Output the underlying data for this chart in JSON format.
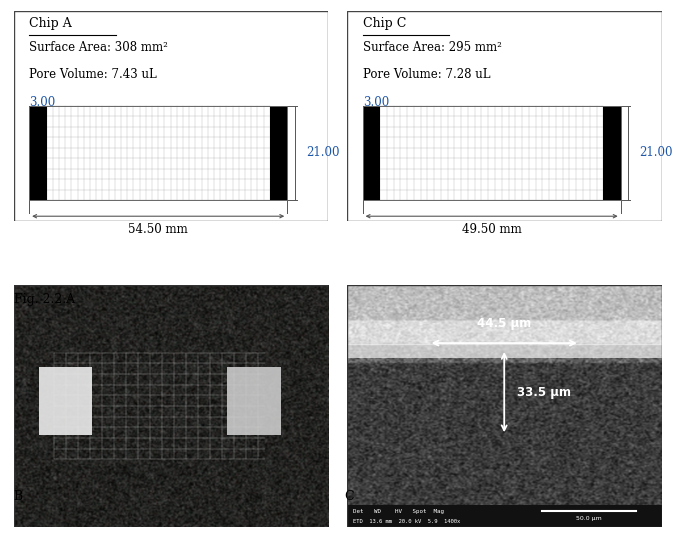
{
  "fig_label": "Fig. 2.2.A",
  "chip_a": {
    "title": "Chip A",
    "surface_area": "Surface Area: 308 mm²",
    "pore_volume": "Pore Volume: 7.43 uL",
    "width_label": "54.50 mm",
    "height_label": "21.00",
    "top_label": "3.00",
    "grid_cols": 36,
    "grid_rows": 9
  },
  "chip_c": {
    "title": "Chip C",
    "surface_area": "Surface Area: 295 mm²",
    "pore_volume": "Pore Volume: 7.28 uL",
    "width_label": "49.50 mm",
    "height_label": "21.00",
    "top_label": "3.00",
    "grid_cols": 33,
    "grid_rows": 9
  },
  "colors": {
    "blue_label": "#1e56a8",
    "black_block": "#000000",
    "text": "#000000",
    "dim_line": "#555555"
  },
  "panel_b_label": "B",
  "panel_c_label": "C",
  "background": "#ffffff",
  "sem_label_44": "44.5 μm",
  "sem_label_33": "33.5 μm",
  "sem_bar_label": "50.0 µm",
  "sem_info1": "Det   WD    HV   Spot  Mag",
  "sem_info2": "ETD  13.6 mm  20.0 kV  5.9  1400x"
}
